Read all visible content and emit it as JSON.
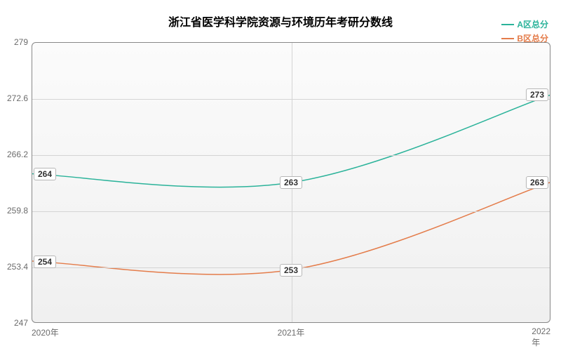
{
  "chart": {
    "type": "line",
    "title": "浙江省医学科学院资源与环境历年考研分数线",
    "title_fontsize": 16,
    "title_color": "#000000",
    "background_color": "#ffffff",
    "plot_bg_gradient_top": "#fbfbfb",
    "plot_bg_gradient_bottom": "#f0f0f0",
    "plot_border_color": "#888888",
    "plot_border_radius": 6,
    "grid_color": "#d4d4d4",
    "axis_label_color": "#6b6b6b",
    "axis_label_fontsize": 12,
    "data_label_color": "#323232",
    "data_label_bg": "#ffffff",
    "data_label_border": "#b7b7b7",
    "line_width": 1.5,
    "categories": [
      "2020年",
      "2021年",
      "2022年"
    ],
    "ylim": [
      247,
      279
    ],
    "yticks": [
      247,
      253.4,
      259.8,
      266.2,
      272.6,
      279
    ],
    "series": [
      {
        "name": "A区总分",
        "color": "#2bb39a",
        "values": [
          264,
          263,
          273
        ],
        "smooth": true
      },
      {
        "name": "B区总分",
        "color": "#e47c4a",
        "values": [
          254,
          253,
          263
        ],
        "smooth": true
      }
    ],
    "legend_position": "top-right",
    "legend_fontsize": 12
  }
}
